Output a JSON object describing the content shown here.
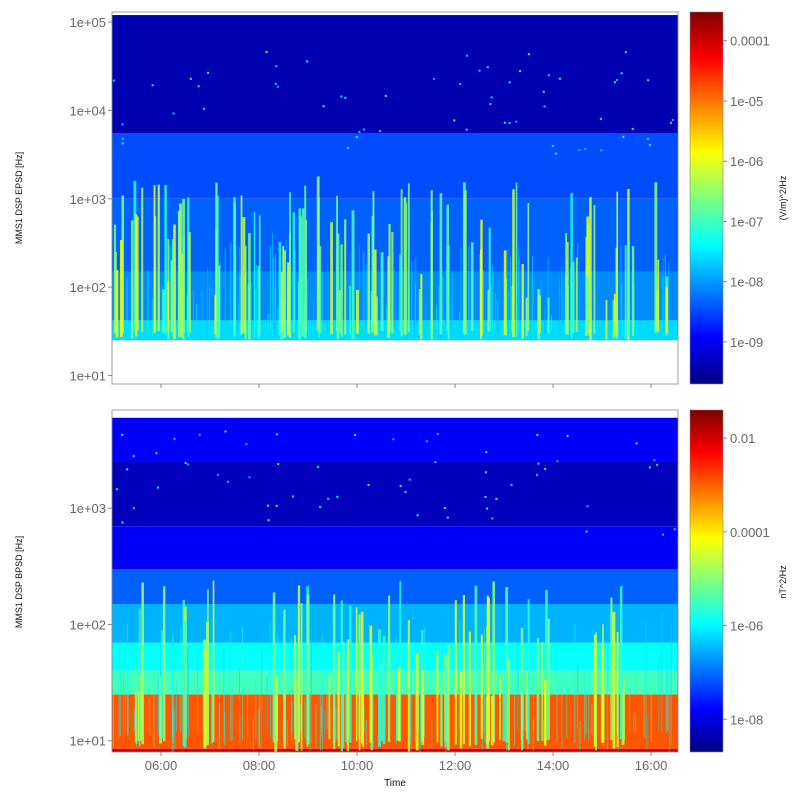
{
  "chart_data": [
    {
      "type": "heatmap",
      "ylabel": "MMS1 DSP EPSD [Hz]",
      "yscale": "log",
      "ylim": [
        8,
        130000
      ],
      "yticks": [
        {
          "value": 10,
          "label": "1e+01"
        },
        {
          "value": 100,
          "label": "1e+02"
        },
        {
          "value": 1000,
          "label": "1e+03"
        },
        {
          "value": 10000,
          "label": "1e+04"
        },
        {
          "value": 100000,
          "label": "1e+05"
        }
      ],
      "x_range_hours": [
        5.0,
        16.55
      ],
      "data_y_range": [
        25,
        120000
      ],
      "bands": [
        {
          "y0": 25,
          "y1": 42,
          "level": 0.34
        },
        {
          "y0": 42,
          "y1": 150,
          "level": 0.26
        },
        {
          "y0": 150,
          "y1": 1000,
          "level": 0.22
        },
        {
          "y0": 1000,
          "y1": 5500,
          "level": 0.2
        },
        {
          "y0": 5500,
          "y1": 120000,
          "level": 0.05
        }
      ],
      "bursts_hours": [
        5.1,
        5.3,
        5.55,
        5.95,
        6.15,
        6.3,
        6.45,
        7.2,
        7.6,
        7.9,
        8.5,
        8.7,
        8.9,
        9.1,
        9.55,
        9.85,
        10.3,
        10.6,
        11.0,
        11.4,
        11.8,
        12.2,
        12.6,
        13.05,
        13.35,
        13.8,
        14.35,
        14.75,
        15.2,
        15.6,
        16.2
      ],
      "colorbar": {
        "title": "(V/m)^2/Hz",
        "scale": "log",
        "range": [
          2e-10,
          0.0003
        ],
        "ticks": [
          {
            "value": 1e-09,
            "label": "1e-09"
          },
          {
            "value": 1e-08,
            "label": "1e-08"
          },
          {
            "value": 1e-07,
            "label": "1e-07"
          },
          {
            "value": 1e-06,
            "label": "1e-06"
          },
          {
            "value": 1e-05,
            "label": "1e-05"
          },
          {
            "value": 0.0001,
            "label": "0.0001"
          }
        ]
      }
    },
    {
      "type": "heatmap",
      "ylabel": "MMS1 DSP BPSD [Hz]",
      "yscale": "log",
      "ylim": [
        8,
        7000
      ],
      "yticks": [
        {
          "value": 10,
          "label": "1e+01"
        },
        {
          "value": 100,
          "label": "1e+02"
        },
        {
          "value": 1000,
          "label": "1e+03"
        }
      ],
      "x_range_hours": [
        5.0,
        16.55
      ],
      "data_y_range": [
        8,
        6000
      ],
      "bands": [
        {
          "y0": 8,
          "y1": 8.5,
          "level": 0.93
        },
        {
          "y0": 8.5,
          "y1": 25,
          "level": 0.79
        },
        {
          "y0": 25,
          "y1": 40,
          "level": 0.44
        },
        {
          "y0": 40,
          "y1": 70,
          "level": 0.38
        },
        {
          "y0": 70,
          "y1": 150,
          "level": 0.3
        },
        {
          "y0": 150,
          "y1": 300,
          "level": 0.22
        },
        {
          "y0": 300,
          "y1": 700,
          "level": 0.12
        },
        {
          "y0": 700,
          "y1": 2500,
          "level": 0.06
        },
        {
          "y0": 2500,
          "y1": 6000,
          "level": 0.12
        }
      ],
      "bursts_hours": [
        5.5,
        6.0,
        6.4,
        7.0,
        8.4,
        8.6,
        8.9,
        9.5,
        9.7,
        9.9,
        10.2,
        10.5,
        10.9,
        11.3,
        11.7,
        12.1,
        12.4,
        12.7,
        13.0,
        13.4,
        13.8,
        14.9,
        15.3
      ],
      "colorbar": {
        "title": "nT^2/Hz",
        "scale": "log",
        "range": [
          2e-09,
          0.04
        ],
        "ticks": [
          {
            "value": 1e-08,
            "label": "1e-08"
          },
          {
            "value": 1e-06,
            "label": "1e-06"
          },
          {
            "value": 0.0001,
            "label": "0.0001"
          },
          {
            "value": 0.01,
            "label": "0.01"
          }
        ]
      }
    }
  ],
  "xaxis": {
    "title": "Time",
    "range_hours": [
      5.0,
      16.55
    ],
    "ticks": [
      {
        "value": 6,
        "label": "06:00"
      },
      {
        "value": 8,
        "label": "08:00"
      },
      {
        "value": 10,
        "label": "10:00"
      },
      {
        "value": 12,
        "label": "12:00"
      },
      {
        "value": 14,
        "label": "14:00"
      },
      {
        "value": 16,
        "label": "16:00"
      }
    ]
  }
}
